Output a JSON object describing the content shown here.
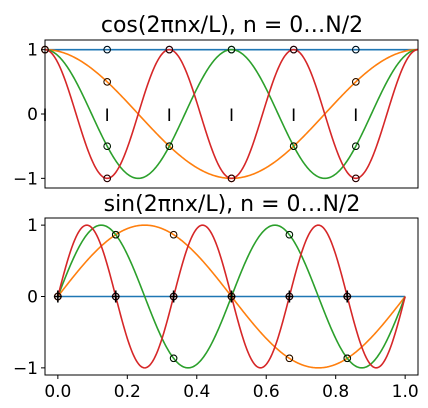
{
  "chart_data": [
    {
      "type": "line",
      "title": "cos(2πnx/L), n = 0…N/2",
      "function": "cos",
      "xlim": [
        0,
        1
      ],
      "ylim": [
        -1.15,
        1.15
      ],
      "xticks": [],
      "yticks": [
        -1,
        0,
        1
      ],
      "ytick_labels": [
        "−1",
        "0",
        "1"
      ],
      "grid": false,
      "samples": {
        "x": [
          0,
          0.1667,
          0.3333,
          0.5,
          0.6667,
          0.8333
        ],
        "label": "I"
      },
      "series": [
        {
          "n": 0,
          "color": "#1f77b4"
        },
        {
          "n": 1,
          "color": "#ff7f0e"
        },
        {
          "n": 2,
          "color": "#2ca02c"
        },
        {
          "n": 3,
          "color": "#d62728"
        }
      ]
    },
    {
      "type": "line",
      "title": "sin(2πnx/L), n = 0…N/2",
      "function": "sin",
      "xlim": [
        -0.037,
        1.037
      ],
      "ylim": [
        -1.1,
        1.1
      ],
      "xticks": [
        0.0,
        0.2,
        0.4,
        0.6,
        0.8,
        1.0
      ],
      "xtick_labels": [
        "0.0",
        "0.2",
        "0.4",
        "0.6",
        "0.8",
        "1.0"
      ],
      "yticks": [
        -1,
        0,
        1
      ],
      "ytick_labels": [
        "−1",
        "0",
        "1"
      ],
      "grid": false,
      "samples": {
        "x": [
          0,
          0.1667,
          0.3333,
          0.5,
          0.6667,
          0.8333
        ],
        "marker": "cross"
      },
      "series": [
        {
          "n": 0,
          "color": "#1f77b4"
        },
        {
          "n": 1,
          "color": "#ff7f0e"
        },
        {
          "n": 2,
          "color": "#2ca02c"
        },
        {
          "n": 3,
          "color": "#d62728"
        }
      ]
    }
  ]
}
